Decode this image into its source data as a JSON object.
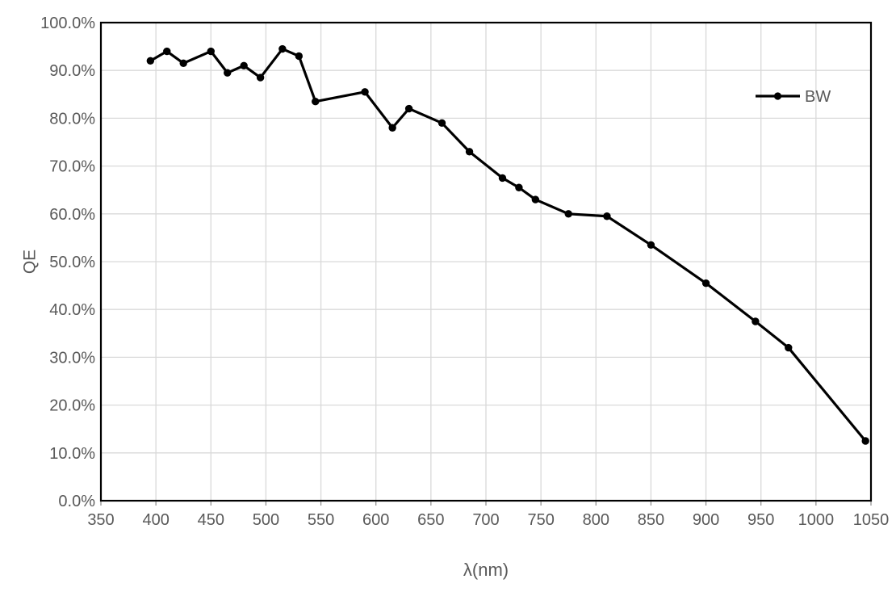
{
  "chart_data": {
    "type": "line",
    "title": "",
    "xlabel": "λ(nm)",
    "ylabel": "QE",
    "xlim": [
      350,
      1050
    ],
    "ylim": [
      0,
      100
    ],
    "x_ticks": [
      350,
      400,
      450,
      500,
      550,
      600,
      650,
      700,
      750,
      800,
      850,
      900,
      950,
      1000,
      1050
    ],
    "x_tick_labels": [
      "350",
      "400",
      "450",
      "500",
      "550",
      "600",
      "650",
      "700",
      "750",
      "800",
      "850",
      "900",
      "950",
      "1000",
      "1050"
    ],
    "y_ticks": [
      0,
      10,
      20,
      30,
      40,
      50,
      60,
      70,
      80,
      90,
      100
    ],
    "y_tick_labels": [
      "0.0%",
      "10.0%",
      "20.0%",
      "30.0%",
      "40.0%",
      "50.0%",
      "60.0%",
      "70.0%",
      "80.0%",
      "90.0%",
      "100.0%"
    ],
    "grid": true,
    "legend": {
      "position": "inside-top-right",
      "entries": [
        {
          "label": "BW",
          "marker": "circle",
          "color": "#000000"
        }
      ]
    },
    "series": [
      {
        "name": "BW",
        "color": "#000000",
        "marker": "circle",
        "x": [
          395,
          410,
          425,
          450,
          465,
          480,
          495,
          515,
          530,
          545,
          590,
          615,
          630,
          660,
          685,
          715,
          730,
          745,
          775,
          810,
          850,
          900,
          945,
          975,
          1045
        ],
        "y": [
          92,
          94,
          91.5,
          94,
          89.5,
          91,
          88.5,
          94.5,
          93,
          83.5,
          85.5,
          78,
          82,
          79,
          73,
          67.5,
          65.5,
          63,
          60,
          59.5,
          53.5,
          45.5,
          37.5,
          32,
          12.5
        ]
      }
    ],
    "colors": {
      "background": "#ffffff",
      "gridline": "#d9d9d9",
      "axis_border": "#000000",
      "tick_label": "#595959",
      "axis_title": "#595959",
      "tick_mark": "#898989",
      "series_line": "#000000"
    }
  }
}
